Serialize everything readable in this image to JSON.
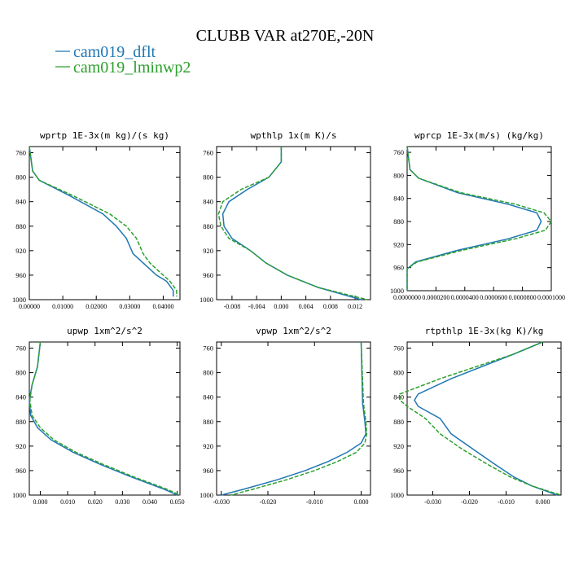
{
  "figure": {
    "title": "CLUBB VAR at270E,-20N",
    "legend": [
      {
        "label": "cam019_dflt",
        "color": "#1f77b4",
        "dash": "solid"
      },
      {
        "label": "cam019_lminwp2",
        "color": "#2ca02c",
        "dash": "dashed"
      }
    ]
  },
  "chart_data": [
    {
      "type": "line",
      "title": "wprtp  1E-3x(m kg)/(s kg)",
      "xlim": [
        0,
        0.045
      ],
      "ylim": [
        1000,
        750
      ],
      "y_inverted": true,
      "xticks": [
        0,
        0.01,
        0.02,
        0.03,
        0.04
      ],
      "xticklabels": [
        "0.00000",
        "0.01000",
        "0.02000",
        "0.03000",
        "0.04000"
      ],
      "yticks": [
        760,
        800,
        840,
        880,
        920,
        960,
        1000
      ],
      "series": [
        {
          "name": "cam019_dflt",
          "y": [
            750,
            790,
            805,
            830,
            860,
            880,
            900,
            925,
            940,
            960,
            970,
            985,
            990,
            995
          ],
          "x": [
            0,
            0.001,
            0.003,
            0.012,
            0.022,
            0.026,
            0.029,
            0.031,
            0.034,
            0.038,
            0.041,
            0.043,
            0.043,
            0.043
          ]
        },
        {
          "name": "cam019_lminwp2",
          "y": [
            750,
            790,
            805,
            830,
            860,
            880,
            900,
            925,
            940,
            960,
            970,
            985,
            990,
            995
          ],
          "x": [
            0,
            0.001,
            0.003,
            0.013,
            0.024,
            0.029,
            0.032,
            0.034,
            0.036,
            0.04,
            0.042,
            0.044,
            0.044,
            0.044
          ]
        }
      ]
    },
    {
      "type": "line",
      "title": "wpthlp  1x(m K)/s",
      "xlim": [
        -0.0105,
        0.0145
      ],
      "ylim": [
        1000,
        750
      ],
      "y_inverted": true,
      "xticks": [
        -0.008,
        -0.004,
        0,
        0.004,
        0.008,
        0.012
      ],
      "xticklabels": [
        "-0.008",
        "-0.004",
        "0.000",
        "0.004",
        "0.008",
        "0.012"
      ],
      "yticks": [
        760,
        800,
        840,
        880,
        920,
        960,
        1000
      ],
      "series": [
        {
          "name": "cam019_dflt",
          "y": [
            750,
            775,
            800,
            820,
            840,
            860,
            880,
            900,
            920,
            940,
            960,
            980,
            1000
          ],
          "x": [
            0,
            0,
            -0.002,
            -0.0055,
            -0.0085,
            -0.0095,
            -0.0093,
            -0.008,
            -0.005,
            -0.0025,
            0.001,
            0.006,
            0.013
          ]
        },
        {
          "name": "cam019_lminwp2",
          "y": [
            750,
            775,
            800,
            820,
            840,
            860,
            880,
            900,
            920,
            940,
            960,
            980,
            1000
          ],
          "x": [
            0,
            0,
            -0.002,
            -0.0065,
            -0.0095,
            -0.0102,
            -0.0098,
            -0.0085,
            -0.005,
            -0.0025,
            0.001,
            0.006,
            0.014
          ]
        }
      ]
    },
    {
      "type": "line",
      "title": "wprcp  1E-3x(m/s) (kg/kg)",
      "xlim": [
        0,
        0.0001
      ],
      "ylim": [
        1000,
        750
      ],
      "y_inverted": true,
      "xticks": [
        0,
        2e-05,
        4e-05,
        6e-05,
        8e-05,
        0.0001
      ],
      "xticklabels": [
        "0.0000000",
        "0.0000200",
        "0.0000400",
        "0.0000600",
        "0.0000800",
        "0.0001000"
      ],
      "yticks": [
        760,
        800,
        840,
        880,
        920,
        960,
        1000
      ],
      "series": [
        {
          "name": "cam019_dflt",
          "y": [
            750,
            790,
            805,
            830,
            850,
            865,
            880,
            895,
            910,
            930,
            950,
            962,
            1000
          ],
          "x": [
            0,
            2e-06,
            8e-06,
            3.5e-05,
            7e-05,
            9e-05,
            9.3e-05,
            9e-05,
            7e-05,
            3.5e-05,
            6e-06,
            0,
            0
          ]
        },
        {
          "name": "cam019_lminwp2",
          "y": [
            750,
            790,
            805,
            830,
            850,
            865,
            880,
            895,
            910,
            930,
            950,
            962,
            1000
          ],
          "x": [
            0,
            2e-06,
            8e-06,
            3.7e-05,
            7.5e-05,
            9.5e-05,
            0.0001,
            9.6e-05,
            7.5e-05,
            3.8e-05,
            7e-06,
            0,
            0
          ]
        }
      ]
    },
    {
      "type": "line",
      "title": "upwp  1xm^2/s^2",
      "xlim": [
        -0.004,
        0.051
      ],
      "ylim": [
        1000,
        750
      ],
      "y_inverted": true,
      "xticks": [
        0,
        0.01,
        0.02,
        0.03,
        0.04,
        0.05
      ],
      "xticklabels": [
        "0.000",
        "0.010",
        "0.020",
        "0.030",
        "0.040",
        "0.050"
      ],
      "yticks": [
        760,
        800,
        840,
        880,
        920,
        960,
        1000
      ],
      "series": [
        {
          "name": "cam019_dflt",
          "y": [
            750,
            790,
            820,
            845,
            870,
            890,
            910,
            930,
            950,
            970,
            990,
            1000
          ],
          "x": [
            0,
            -0.001,
            -0.003,
            -0.004,
            -0.0035,
            -0.001,
            0.004,
            0.012,
            0.022,
            0.033,
            0.045,
            0.05
          ]
        },
        {
          "name": "cam019_lminwp2",
          "y": [
            750,
            790,
            820,
            845,
            870,
            890,
            910,
            930,
            950,
            970,
            990,
            1000
          ],
          "x": [
            0,
            -0.001,
            -0.003,
            -0.0038,
            -0.003,
            0,
            0.005,
            0.013,
            0.023,
            0.034,
            0.046,
            0.051
          ]
        }
      ]
    },
    {
      "type": "line",
      "title": "vpwp  1xm^2/s^2",
      "xlim": [
        -0.031,
        0.002
      ],
      "ylim": [
        1000,
        750
      ],
      "y_inverted": true,
      "xticks": [
        -0.03,
        -0.02,
        -0.01,
        0
      ],
      "xticklabels": [
        "-0.030",
        "-0.020",
        "-0.010",
        "0.000"
      ],
      "yticks": [
        760,
        800,
        840,
        880,
        920,
        960,
        1000
      ],
      "series": [
        {
          "name": "cam019_dflt",
          "y": [
            750,
            850,
            880,
            900,
            915,
            930,
            945,
            960,
            975,
            990,
            1000
          ],
          "x": [
            0,
            0.0003,
            0.0008,
            0.001,
            0,
            -0.003,
            -0.007,
            -0.012,
            -0.018,
            -0.025,
            -0.03
          ]
        },
        {
          "name": "cam019_lminwp2",
          "y": [
            750,
            850,
            880,
            900,
            915,
            930,
            945,
            960,
            975,
            990,
            1000
          ],
          "x": [
            0,
            0.0005,
            0.001,
            0.0012,
            0.0008,
            -0.001,
            -0.005,
            -0.01,
            -0.016,
            -0.023,
            -0.028
          ]
        }
      ]
    },
    {
      "type": "line",
      "title": "rtpthlp  1E-3x(kg K)/kg",
      "xlim": [
        -0.037,
        0.005
      ],
      "ylim": [
        1000,
        750
      ],
      "y_inverted": true,
      "xticks": [
        -0.03,
        -0.02,
        -0.01,
        0
      ],
      "xticklabels": [
        "-0.030",
        "-0.020",
        "-0.010",
        "0.000"
      ],
      "yticks": [
        760,
        800,
        840,
        880,
        920,
        960,
        1000
      ],
      "series": [
        {
          "name": "cam019_dflt",
          "y": [
            750,
            770,
            810,
            835,
            845,
            855,
            875,
            900,
            925,
            950,
            970,
            985,
            1000
          ],
          "x": [
            0,
            -0.008,
            -0.025,
            -0.034,
            -0.035,
            -0.034,
            -0.028,
            -0.025,
            -0.019,
            -0.013,
            -0.008,
            -0.003,
            0.004
          ]
        },
        {
          "name": "cam019_lminwp2",
          "y": [
            750,
            770,
            810,
            835,
            845,
            855,
            875,
            900,
            925,
            950,
            970,
            985,
            1000
          ],
          "x": [
            0,
            -0.008,
            -0.028,
            -0.039,
            -0.039,
            -0.037,
            -0.032,
            -0.028,
            -0.022,
            -0.015,
            -0.009,
            -0.003,
            0.005
          ]
        }
      ]
    }
  ]
}
